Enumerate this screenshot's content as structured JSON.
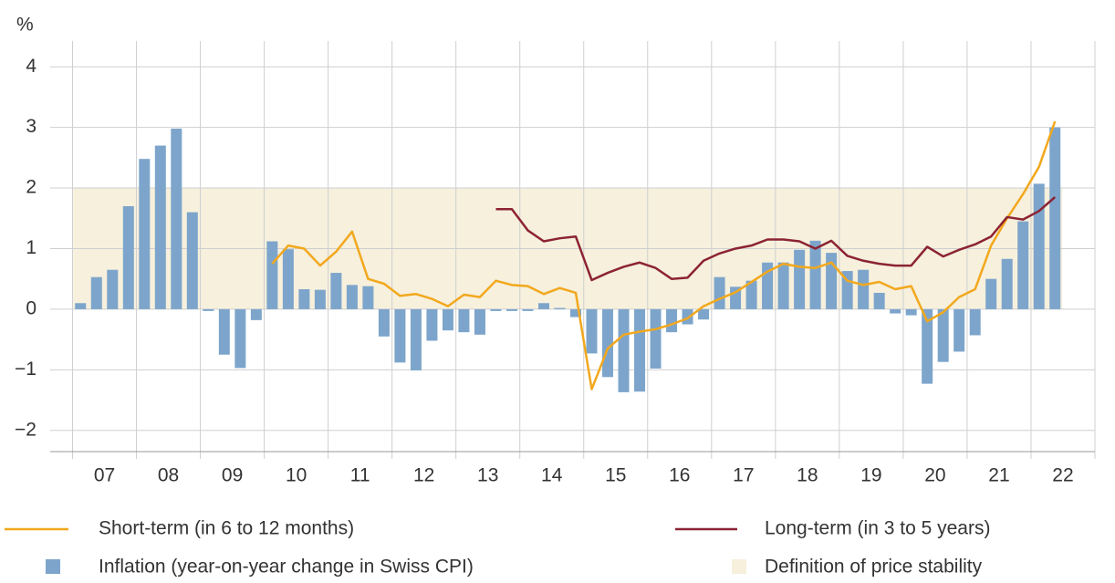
{
  "chart_data": {
    "type": "bar",
    "y_unit": "%",
    "xlim": [
      2006.65,
      2023
    ],
    "ylim": [
      -2.35,
      4.5
    ],
    "yticks": [
      -2,
      -1,
      0,
      1,
      2,
      3,
      4
    ],
    "yticks_labels": [
      "−2",
      "−1",
      "0",
      "1",
      "2",
      "3",
      "4"
    ],
    "xticks": [
      {
        "value": 2007.5,
        "label": "07"
      },
      {
        "value": 2008.5,
        "label": "08"
      },
      {
        "value": 2009.5,
        "label": "09"
      },
      {
        "value": 2010.5,
        "label": "10"
      },
      {
        "value": 2011.5,
        "label": "11"
      },
      {
        "value": 2012.5,
        "label": "12"
      },
      {
        "value": 2013.5,
        "label": "13"
      },
      {
        "value": 2014.5,
        "label": "14"
      },
      {
        "value": 2015.5,
        "label": "15"
      },
      {
        "value": 2016.5,
        "label": "16"
      },
      {
        "value": 2017.5,
        "label": "17"
      },
      {
        "value": 2018.5,
        "label": "18"
      },
      {
        "value": 2019.5,
        "label": "19"
      },
      {
        "value": 2020.5,
        "label": "20"
      },
      {
        "value": 2021.5,
        "label": "21"
      },
      {
        "value": 2022.5,
        "label": "22"
      }
    ],
    "grid": true,
    "band": {
      "name": "Definition of price stability",
      "from": 0,
      "to": 2,
      "color": "#f6f0dd"
    },
    "series": [
      {
        "name": "Inflation (year-on-year change in Swiss CPI)",
        "kind": "bar",
        "color": "#7da5cb",
        "x": [
          2007.125,
          2007.375,
          2007.625,
          2007.875,
          2008.125,
          2008.375,
          2008.625,
          2008.875,
          2009.125,
          2009.375,
          2009.625,
          2009.875,
          2010.125,
          2010.375,
          2010.625,
          2010.875,
          2011.125,
          2011.375,
          2011.625,
          2011.875,
          2012.125,
          2012.375,
          2012.625,
          2012.875,
          2013.125,
          2013.375,
          2013.625,
          2013.875,
          2014.125,
          2014.375,
          2014.625,
          2014.875,
          2015.125,
          2015.375,
          2015.625,
          2015.875,
          2016.125,
          2016.375,
          2016.625,
          2016.875,
          2017.125,
          2017.375,
          2017.625,
          2017.875,
          2018.125,
          2018.375,
          2018.625,
          2018.875,
          2019.125,
          2019.375,
          2019.625,
          2019.875,
          2020.125,
          2020.375,
          2020.625,
          2020.875,
          2021.125,
          2021.375,
          2021.625,
          2021.875,
          2022.125,
          2022.375
        ],
        "values": [
          0.1,
          0.53,
          0.65,
          1.7,
          2.48,
          2.7,
          2.98,
          1.6,
          -0.03,
          -0.75,
          -0.97,
          -0.18,
          1.12,
          0.99,
          0.33,
          0.32,
          0.6,
          0.4,
          0.38,
          -0.45,
          -0.88,
          -1.01,
          -0.52,
          -0.35,
          -0.38,
          -0.42,
          -0.03,
          -0.03,
          -0.03,
          0.1,
          0.02,
          -0.13,
          -0.73,
          -1.12,
          -1.37,
          -1.36,
          -0.98,
          -0.38,
          -0.25,
          -0.17,
          0.53,
          0.37,
          0.47,
          0.77,
          0.77,
          0.98,
          1.13,
          0.93,
          0.63,
          0.65,
          0.27,
          -0.07,
          -0.1,
          -1.23,
          -0.87,
          -0.7,
          -0.43,
          0.5,
          0.83,
          1.45,
          2.07,
          3.0
        ]
      },
      {
        "name": "Short-term (in 6 to 12 months)",
        "kind": "line",
        "color": "#f2a81d",
        "x": [
          2010.125,
          2010.375,
          2010.625,
          2010.875,
          2011.125,
          2011.375,
          2011.625,
          2011.875,
          2012.125,
          2012.375,
          2012.625,
          2012.875,
          2013.125,
          2013.375,
          2013.625,
          2013.875,
          2014.125,
          2014.375,
          2014.625,
          2014.875,
          2015.125,
          2015.375,
          2015.625,
          2015.875,
          2016.125,
          2016.375,
          2016.625,
          2016.875,
          2017.125,
          2017.375,
          2017.625,
          2017.875,
          2018.125,
          2018.375,
          2018.625,
          2018.875,
          2019.125,
          2019.375,
          2019.625,
          2019.875,
          2020.125,
          2020.375,
          2020.625,
          2020.875,
          2021.125,
          2021.375,
          2021.625,
          2021.875,
          2022.125,
          2022.375
        ],
        "values": [
          0.75,
          1.05,
          1.0,
          0.72,
          0.95,
          1.28,
          0.5,
          0.42,
          0.22,
          0.25,
          0.17,
          0.05,
          0.24,
          0.2,
          0.47,
          0.4,
          0.38,
          0.25,
          0.35,
          0.27,
          -1.32,
          -0.65,
          -0.42,
          -0.37,
          -0.33,
          -0.25,
          -0.15,
          0.05,
          0.17,
          0.28,
          0.45,
          0.62,
          0.75,
          0.7,
          0.68,
          0.77,
          0.47,
          0.4,
          0.45,
          0.33,
          0.38,
          -0.2,
          -0.05,
          0.2,
          0.33,
          1.05,
          1.5,
          1.9,
          2.35,
          3.1
        ]
      },
      {
        "name": "Long-term (in 3 to 5 years)",
        "kind": "line",
        "color": "#8c2333",
        "x": [
          2013.625,
          2013.875,
          2014.125,
          2014.375,
          2014.625,
          2014.875,
          2015.125,
          2015.375,
          2015.625,
          2015.875,
          2016.125,
          2016.375,
          2016.625,
          2016.875,
          2017.125,
          2017.375,
          2017.625,
          2017.875,
          2018.125,
          2018.375,
          2018.625,
          2018.875,
          2019.125,
          2019.375,
          2019.625,
          2019.875,
          2020.125,
          2020.375,
          2020.625,
          2020.875,
          2021.125,
          2021.375,
          2021.625,
          2021.875,
          2022.125,
          2022.375
        ],
        "values": [
          1.65,
          1.65,
          1.3,
          1.12,
          1.17,
          1.2,
          0.48,
          0.6,
          0.7,
          0.77,
          0.68,
          0.5,
          0.52,
          0.8,
          0.92,
          1.0,
          1.05,
          1.15,
          1.15,
          1.12,
          1.0,
          1.13,
          0.88,
          0.8,
          0.75,
          0.72,
          0.72,
          1.03,
          0.87,
          0.98,
          1.07,
          1.2,
          1.52,
          1.48,
          1.62,
          1.85
        ]
      }
    ]
  }
}
